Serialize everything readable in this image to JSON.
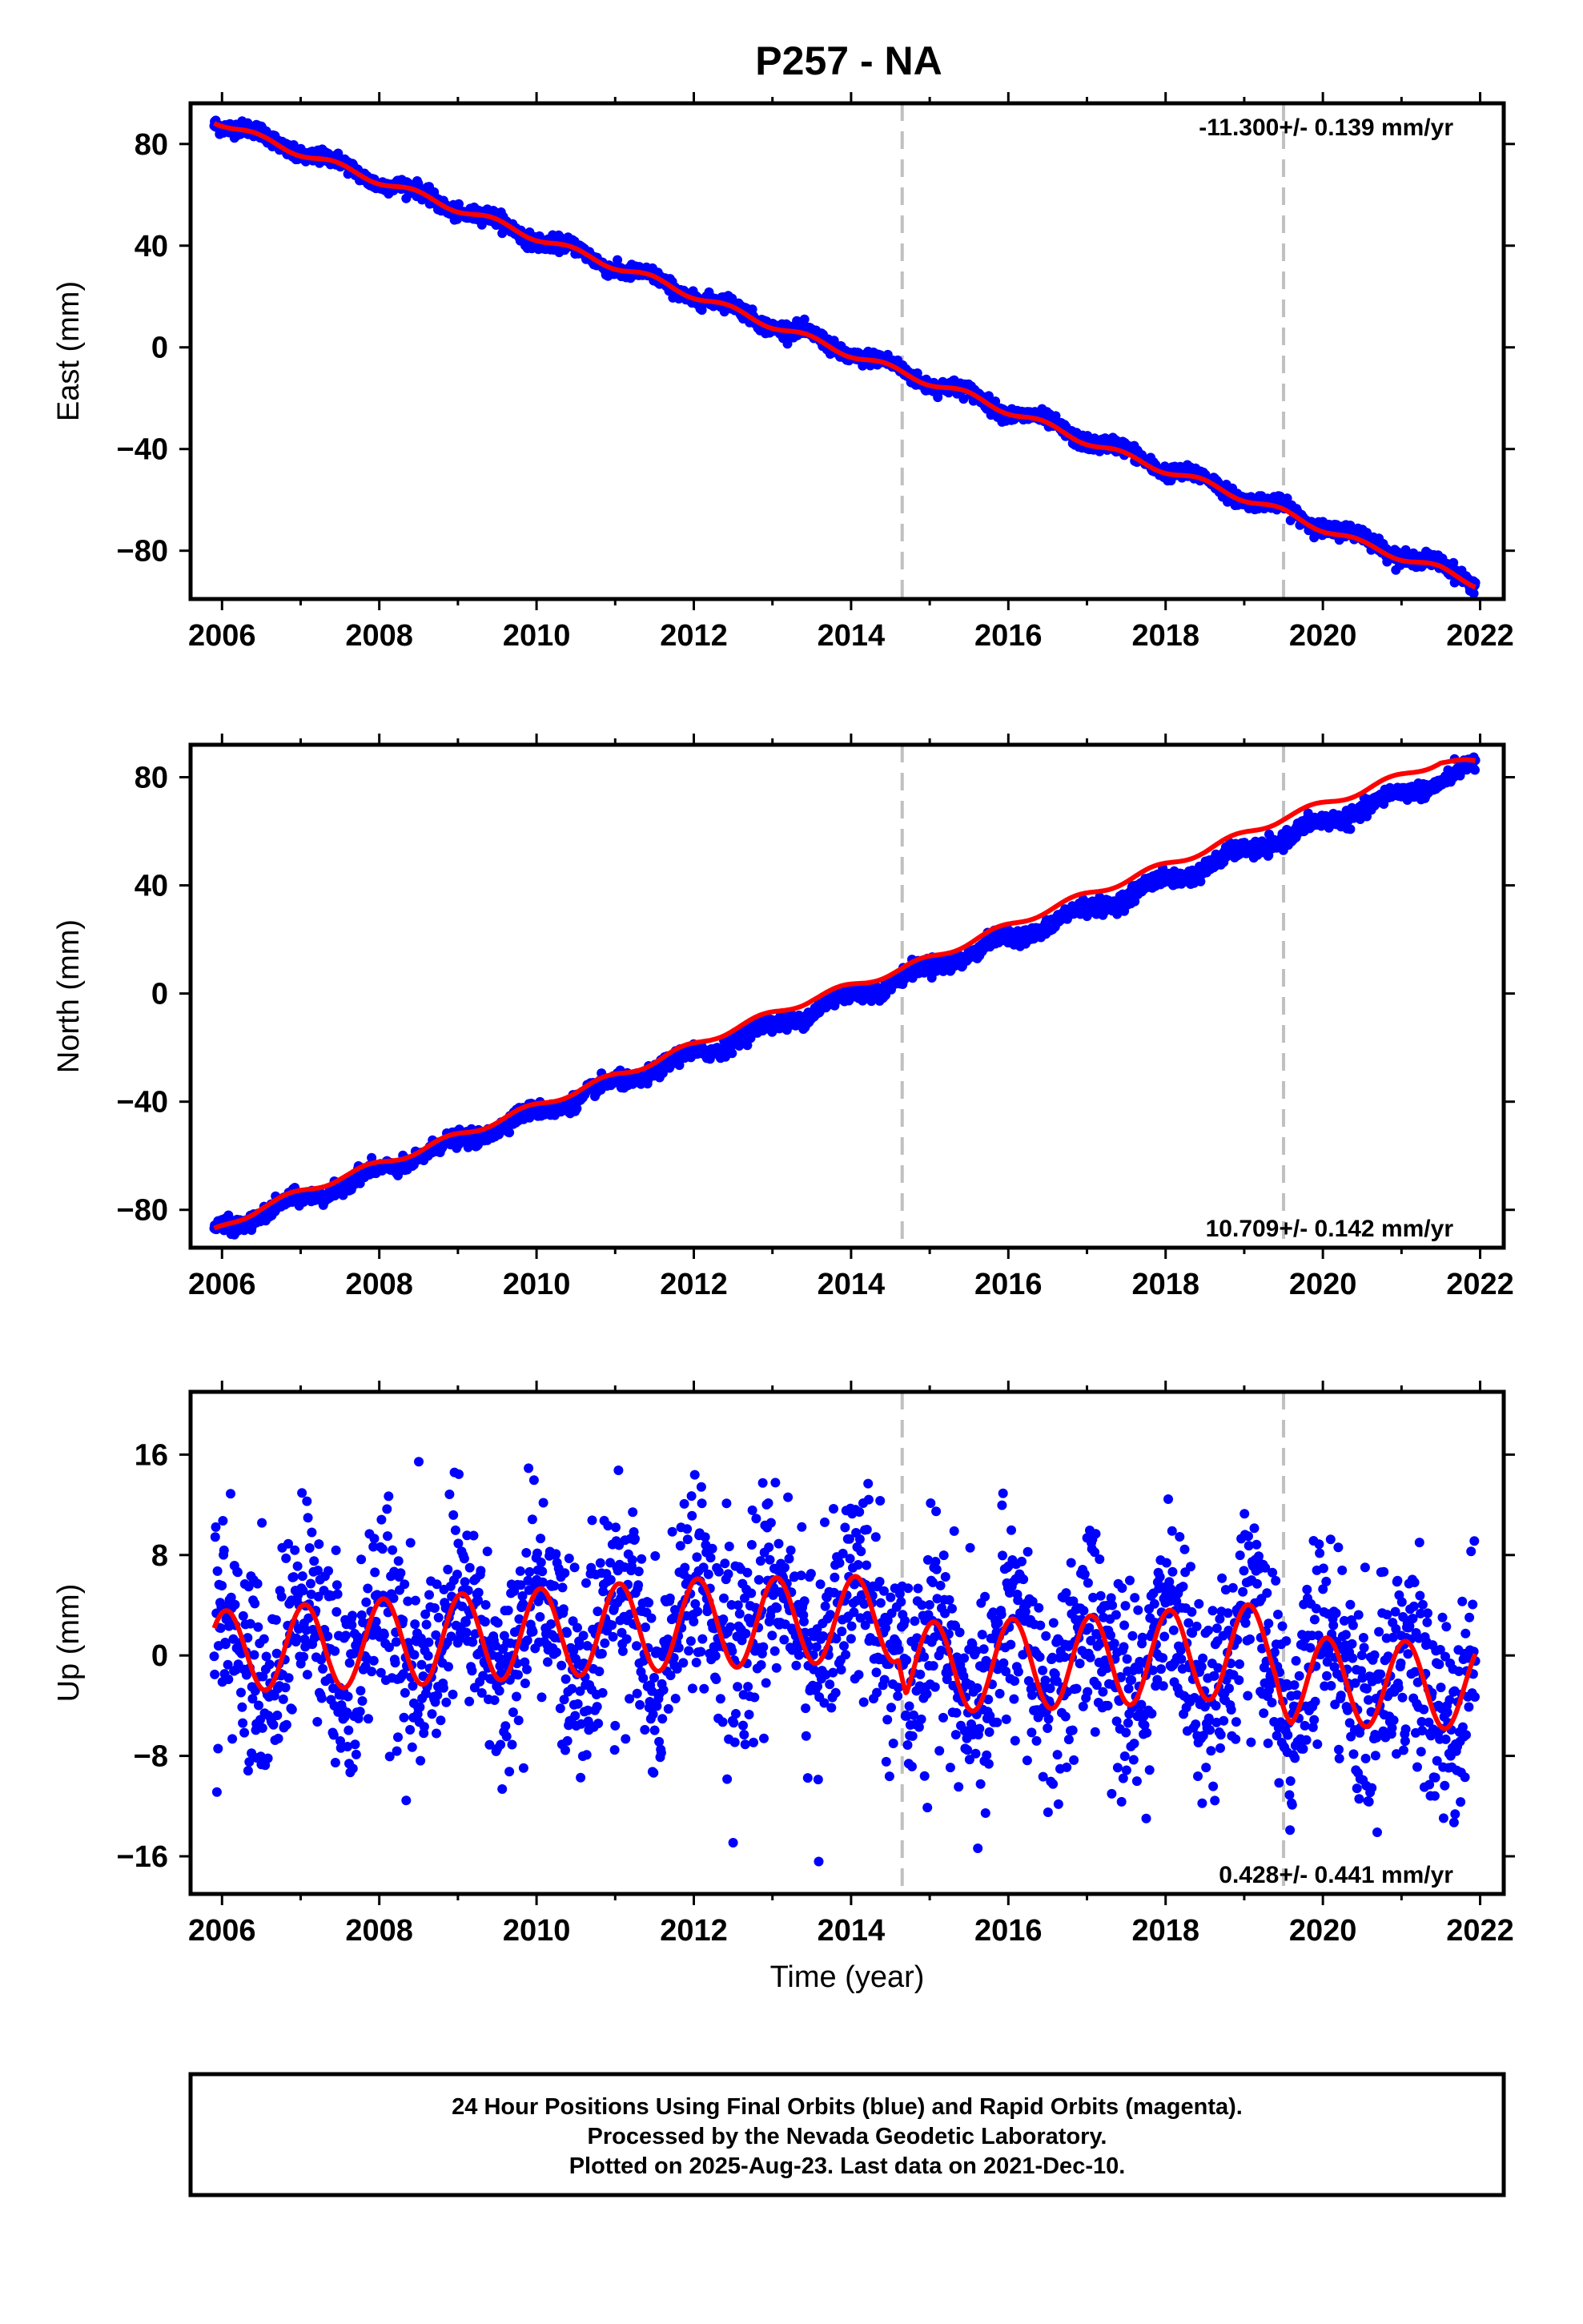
{
  "title": "P257 - NA",
  "colors": {
    "final_orbits": "#0000ff",
    "model": "#ff0000",
    "breaks": "#c0c0c0",
    "axes": "#000000"
  },
  "caption": {
    "line1": "24 Hour Positions Using Final Orbits (blue) and Rapid Orbits (magenta).",
    "line2": "Processed by the Nevada Geodetic Laboratory.",
    "line3": "Plotted on 2025-Aug-23. Last data on 2021-Dec-10."
  },
  "chart_data": [
    {
      "type": "scatter",
      "panel": "east",
      "ylabel": "East (mm)",
      "xlabel": "",
      "xlim": [
        2005.6,
        2022.3
      ],
      "ylim": [
        -99,
        96
      ],
      "xticks": [
        "2006",
        "2008",
        "2010",
        "2012",
        "2014",
        "2016",
        "2018",
        "2020",
        "2022"
      ],
      "xtick_values": [
        2006,
        2008,
        2010,
        2012,
        2014,
        2016,
        2018,
        2020,
        2022
      ],
      "yticks": [
        "80",
        "40",
        "0",
        "−40",
        "−80"
      ],
      "ytick_values": [
        80,
        40,
        0,
        -40,
        -80
      ],
      "grid": false,
      "rate_label": "-11.300+/- 0.139 mm/yr",
      "rate_position": "top-right",
      "breaks": [
        2014.65,
        2019.5
      ],
      "series": [
        {
          "role": "final-orbit-positions",
          "color": "#0000ff",
          "x_start": 2005.9,
          "x_end": 2021.94,
          "trend": -11.3,
          "intercept_at_start": 89.5,
          "annual_amplitude": 2.0,
          "annual_phase_year": 0.2,
          "scatter": 1.4,
          "dot_radius_mm": 1
        },
        {
          "role": "model-fit",
          "color": "#ff0000",
          "x": [
            2005.9,
            2006.5,
            2007.5,
            2008.5,
            2009.5,
            2010.5,
            2011.5,
            2012.5,
            2013.5,
            2014.65,
            2015.5,
            2016.5,
            2017.5,
            2018.5,
            2019.5,
            2020.5,
            2021.5,
            2021.94
          ],
          "y": [
            89.5,
            82.0,
            71.0,
            60.0,
            49.0,
            37.5,
            26.5,
            14.5,
            3.0,
            -10.0,
            -19.0,
            -31.0,
            -43.0,
            -53.5,
            -65.0,
            -77.5,
            -87.5,
            -93.0
          ]
        }
      ]
    },
    {
      "type": "scatter",
      "panel": "north",
      "ylabel": "North (mm)",
      "xlabel": "",
      "xlim": [
        2005.6,
        2022.3
      ],
      "ylim": [
        -94,
        92
      ],
      "xticks": [
        "2006",
        "2008",
        "2010",
        "2012",
        "2014",
        "2016",
        "2018",
        "2020",
        "2022"
      ],
      "xtick_values": [
        2006,
        2008,
        2010,
        2012,
        2014,
        2016,
        2018,
        2020,
        2022
      ],
      "yticks": [
        "80",
        "40",
        "0",
        "−40",
        "−80"
      ],
      "ytick_values": [
        80,
        40,
        0,
        -40,
        -80
      ],
      "grid": false,
      "rate_label": "10.709+/- 0.142 mm/yr",
      "rate_position": "bottom-right",
      "breaks": [
        2014.65,
        2019.5
      ],
      "series": [
        {
          "role": "final-orbit-positions",
          "color": "#0000ff",
          "x_start": 2005.9,
          "x_end": 2021.94,
          "trend": 10.709,
          "intercept_at_start": -88,
          "annual_amplitude": 1.8,
          "annual_phase_year": 0.6,
          "scatter": 1.4,
          "dot_radius_mm": 1
        },
        {
          "role": "model-fit",
          "color": "#ff0000",
          "x": [
            2005.9,
            2006.5,
            2007.5,
            2008.5,
            2009.5,
            2010.5,
            2011.5,
            2012.5,
            2013.5,
            2014.65,
            2015.5,
            2016.5,
            2017.5,
            2018.5,
            2019.5,
            2020.5,
            2021.5,
            2021.94
          ],
          "y": [
            -88,
            -79,
            -68,
            -58,
            -47,
            -36,
            -25,
            -13,
            -2,
            9,
            19,
            31,
            42,
            53,
            65,
            75,
            86,
            85
          ]
        }
      ]
    },
    {
      "type": "scatter",
      "panel": "up",
      "ylabel": "Up (mm)",
      "xlabel": "Time (year)",
      "xlim": [
        2005.6,
        2022.3
      ],
      "ylim": [
        -19,
        21
      ],
      "xticks": [
        "2006",
        "2008",
        "2010",
        "2012",
        "2014",
        "2016",
        "2018",
        "2020",
        "2022"
      ],
      "xtick_values": [
        2006,
        2008,
        2010,
        2012,
        2014,
        2016,
        2018,
        2020,
        2022
      ],
      "yticks": [
        "16",
        "8",
        "0",
        "−8",
        "−16"
      ],
      "ytick_values": [
        16,
        8,
        0,
        -8,
        -16
      ],
      "grid": false,
      "rate_label": "0.428+/- 0.441 mm/yr",
      "rate_position": "bottom-right",
      "breaks": [
        2014.65,
        2019.5
      ],
      "series": [
        {
          "role": "final-orbit-positions",
          "color": "#0000ff",
          "x_start": 2005.9,
          "x_end": 2021.94,
          "trend": 0.428,
          "intercept_at_start": 0.0,
          "annual_amplitude": 4.0,
          "annual_phase_year": 0.8,
          "scatter": 4.0,
          "dot_radius_mm": 1
        },
        {
          "role": "model-fit",
          "color": "#ff0000",
          "annual_amplitude": [
            [
              2005.9,
              3.2
            ],
            [
              2008.0,
              3.5
            ],
            [
              2012.0,
              3.6
            ],
            [
              2014.0,
              3.4
            ],
            [
              2015.0,
              3.6
            ],
            [
              2019.0,
              3.7
            ],
            [
              2020.0,
              3.5
            ],
            [
              2021.94,
              3.4
            ]
          ],
          "annual_phase_year": 0.8,
          "offset": [
            [
              2005.9,
              0.3
            ],
            [
              2008.0,
              1.0
            ],
            [
              2012.0,
              2.5
            ],
            [
              2014.6,
              3.0
            ],
            [
              2014.7,
              -1.0
            ],
            [
              2017.0,
              -0.5
            ],
            [
              2019.4,
              0.5
            ],
            [
              2019.6,
              -2.0
            ],
            [
              2021.94,
              -2.5
            ]
          ]
        }
      ]
    }
  ]
}
